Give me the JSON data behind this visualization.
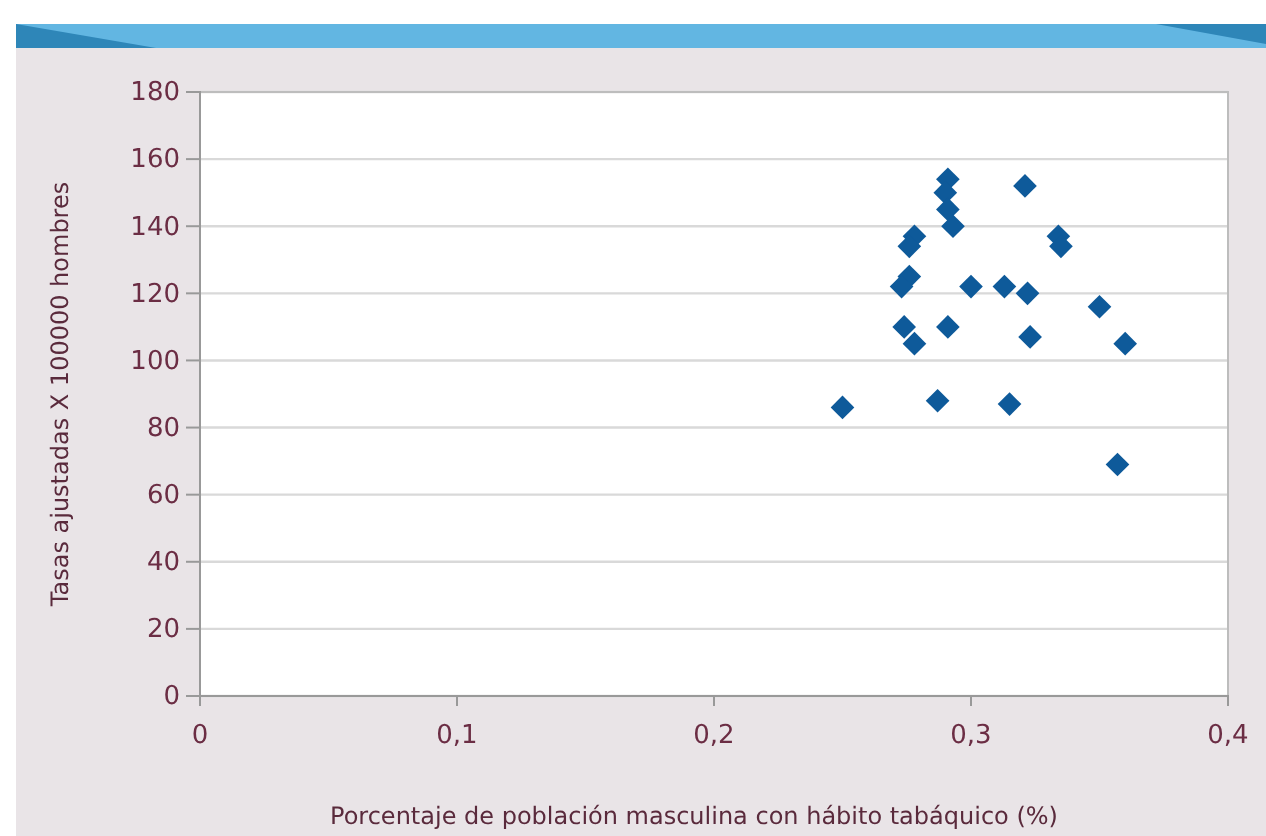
{
  "chart_data": {
    "type": "scatter",
    "xlabel": "Porcentaje de población masculina con hábito tabáquico (%)",
    "ylabel": "Tasas ajustadas X 100000 hombres",
    "x": [
      0.25,
      0.291,
      0.29,
      0.291,
      0.293,
      0.321,
      0.278,
      0.276,
      0.334,
      0.335,
      0.276,
      0.273,
      0.3,
      0.313,
      0.322,
      0.35,
      0.274,
      0.278,
      0.291,
      0.323,
      0.36,
      0.287,
      0.315,
      0.357
    ],
    "series": [
      {
        "color": "#0e5a9a",
        "values": [
          86,
          154,
          150,
          145,
          140,
          152,
          137,
          134,
          137,
          134,
          125,
          122,
          122,
          122,
          120,
          116,
          110,
          105,
          110,
          107,
          105,
          88,
          87,
          69
        ]
      }
    ],
    "marker": "diamond",
    "grid": "y",
    "xlim": [
      0,
      0.4
    ],
    "xticks": [
      {
        "value": 0,
        "label": "0"
      },
      {
        "value": 0.1,
        "label": "0,1"
      },
      {
        "value": 0.2,
        "label": "0,2"
      },
      {
        "value": 0.3,
        "label": "0,3"
      },
      {
        "value": 0.4,
        "label": "0,4"
      }
    ],
    "ylim": [
      0,
      180
    ],
    "yticks": [
      0,
      20,
      40,
      60,
      80,
      100,
      120,
      140,
      160,
      180
    ]
  }
}
